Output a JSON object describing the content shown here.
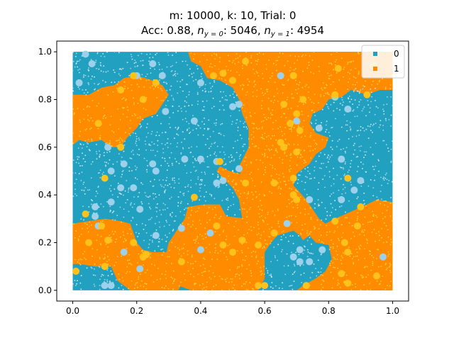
{
  "chart_data": {
    "type": "scatter",
    "title_line1": "m: 10000, k: 10, Trial: 0",
    "title_line2": {
      "prefix": "Acc: 0.88, ",
      "n0_label": "n",
      "n0_sub": "y = 0",
      "n0_value": ": 5046, ",
      "n1_label": "n",
      "n1_sub": "y = 1",
      "n1_value": ": 4954"
    },
    "xlim": [
      -0.05,
      1.05
    ],
    "ylim": [
      -0.045,
      1.045
    ],
    "x_ticks": [
      0.0,
      0.2,
      0.4,
      0.6,
      0.8,
      1.0
    ],
    "y_ticks": [
      0.0,
      0.2,
      0.4,
      0.6,
      0.8,
      1.0
    ],
    "x_tick_labels": [
      "0.0",
      "0.2",
      "0.4",
      "0.6",
      "0.8",
      "1.0"
    ],
    "y_tick_labels": [
      "0.0",
      "0.2",
      "0.4",
      "0.6",
      "0.8",
      "1.0"
    ],
    "grid": false,
    "legend_position": "top-right",
    "series": [
      {
        "name": "0",
        "color": "#22a0c0",
        "class": 0
      },
      {
        "name": "1",
        "color": "#ff8c00",
        "class": 1
      }
    ],
    "decision_regions": {
      "class1_polygons": [
        [
          [
            0.36,
            1.0
          ],
          [
            1.0,
            1.0
          ],
          [
            1.0,
            0.84
          ],
          [
            0.96,
            0.84
          ],
          [
            0.92,
            0.82
          ],
          [
            0.87,
            0.84
          ],
          [
            0.8,
            0.82
          ],
          [
            0.76,
            0.78
          ],
          [
            0.72,
            0.74
          ],
          [
            0.69,
            0.68
          ],
          [
            0.7,
            0.62
          ],
          [
            0.67,
            0.55
          ],
          [
            0.62,
            0.49
          ],
          [
            0.6,
            0.43
          ],
          [
            0.58,
            0.36
          ],
          [
            0.55,
            0.3
          ],
          [
            0.48,
            0.31
          ],
          [
            0.46,
            0.36
          ],
          [
            0.41,
            0.36
          ],
          [
            0.36,
            0.35
          ],
          [
            0.35,
            0.3
          ],
          [
            0.32,
            0.24
          ],
          [
            0.3,
            0.2
          ],
          [
            0.29,
            0.14
          ],
          [
            0.3,
            0.08
          ],
          [
            0.33,
            0.02
          ],
          [
            0.37,
            0.0
          ],
          [
            0.58,
            0.0
          ],
          [
            0.6,
            0.05
          ],
          [
            0.6,
            0.16
          ],
          [
            0.62,
            0.2
          ],
          [
            0.64,
            0.23
          ],
          [
            0.69,
            0.25
          ],
          [
            0.71,
            0.23
          ],
          [
            0.72,
            0.21
          ],
          [
            0.74,
            0.23
          ],
          [
            0.76,
            0.2
          ],
          [
            0.8,
            0.19
          ],
          [
            0.81,
            0.13
          ],
          [
            0.79,
            0.08
          ],
          [
            0.76,
            0.05
          ],
          [
            0.72,
            0.02
          ],
          [
            0.7,
            0.0
          ],
          [
            1.0,
            0.0
          ],
          [
            1.0,
            0.37
          ],
          [
            0.95,
            0.38
          ],
          [
            0.92,
            0.36
          ],
          [
            0.87,
            0.33
          ],
          [
            0.82,
            0.3
          ],
          [
            0.79,
            0.28
          ],
          [
            0.77,
            0.3
          ],
          [
            0.75,
            0.34
          ],
          [
            0.73,
            0.38
          ],
          [
            0.71,
            0.41
          ],
          [
            0.69,
            0.44
          ],
          [
            0.7,
            0.49
          ],
          [
            0.74,
            0.53
          ],
          [
            0.76,
            0.57
          ],
          [
            0.79,
            0.6
          ],
          [
            0.8,
            0.64
          ],
          [
            0.76,
            0.66
          ],
          [
            0.74,
            0.7
          ],
          [
            0.75,
            0.74
          ],
          [
            0.78,
            0.76
          ],
          [
            0.8,
            0.8
          ],
          [
            0.84,
            0.81
          ],
          [
            0.87,
            0.84
          ],
          [
            0.92,
            0.86
          ],
          [
            0.96,
            0.86
          ],
          [
            1.0,
            0.86
          ],
          [
            1.0,
            0.84
          ],
          [
            0.96,
            0.84
          ],
          [
            0.92,
            0.82
          ],
          [
            0.87,
            0.84
          ],
          [
            0.8,
            0.82
          ],
          [
            0.76,
            0.78
          ],
          [
            0.72,
            0.74
          ],
          [
            0.69,
            0.68
          ],
          [
            0.7,
            0.62
          ],
          [
            0.67,
            0.55
          ],
          [
            0.62,
            0.49
          ],
          [
            0.6,
            0.43
          ],
          [
            0.58,
            0.36
          ],
          [
            0.55,
            0.3
          ],
          [
            0.52,
            0.52
          ],
          [
            0.55,
            0.6
          ],
          [
            0.55,
            0.68
          ],
          [
            0.53,
            0.74
          ],
          [
            0.52,
            0.8
          ],
          [
            0.5,
            0.85
          ],
          [
            0.46,
            0.88
          ],
          [
            0.42,
            0.89
          ],
          [
            0.4,
            0.94
          ],
          [
            0.37,
            0.96
          ]
        ],
        [
          [
            0.0,
            0.82
          ],
          [
            0.05,
            0.82
          ],
          [
            0.09,
            0.85
          ],
          [
            0.13,
            0.86
          ],
          [
            0.16,
            0.89
          ],
          [
            0.2,
            0.9
          ],
          [
            0.25,
            0.88
          ],
          [
            0.28,
            0.86
          ],
          [
            0.3,
            0.82
          ],
          [
            0.28,
            0.78
          ],
          [
            0.26,
            0.74
          ],
          [
            0.22,
            0.72
          ],
          [
            0.2,
            0.68
          ],
          [
            0.17,
            0.64
          ],
          [
            0.15,
            0.6
          ],
          [
            0.12,
            0.6
          ],
          [
            0.09,
            0.63
          ],
          [
            0.05,
            0.62
          ],
          [
            0.02,
            0.63
          ],
          [
            0.0,
            0.61
          ]
        ],
        [
          [
            0.0,
            0.28
          ],
          [
            0.05,
            0.29
          ],
          [
            0.1,
            0.3
          ],
          [
            0.15,
            0.29
          ],
          [
            0.18,
            0.28
          ],
          [
            0.19,
            0.24
          ],
          [
            0.2,
            0.2
          ],
          [
            0.22,
            0.17
          ],
          [
            0.25,
            0.16
          ],
          [
            0.3,
            0.16
          ],
          [
            0.33,
            0.14
          ],
          [
            0.35,
            0.1
          ],
          [
            0.35,
            0.05
          ],
          [
            0.33,
            0.0
          ],
          [
            0.18,
            0.0
          ],
          [
            0.14,
            0.04
          ],
          [
            0.12,
            0.1
          ],
          [
            0.07,
            0.1
          ],
          [
            0.02,
            0.11
          ],
          [
            0.0,
            0.11
          ]
        ],
        [
          [
            0.46,
            0.52
          ],
          [
            0.49,
            0.5
          ],
          [
            0.52,
            0.49
          ],
          [
            0.55,
            0.47
          ],
          [
            0.57,
            0.42
          ],
          [
            0.58,
            0.36
          ],
          [
            0.55,
            0.3
          ],
          [
            0.53,
            0.3
          ],
          [
            0.52,
            0.38
          ],
          [
            0.5,
            0.43
          ],
          [
            0.47,
            0.47
          ],
          [
            0.45,
            0.5
          ]
        ]
      ]
    },
    "points": {
      "count_background": 10000,
      "large_class0": [
        [
          0.04,
          0.99
        ],
        [
          0.06,
          0.95
        ],
        [
          0.02,
          0.87
        ],
        [
          0.2,
          0.9
        ],
        [
          0.25,
          0.95
        ],
        [
          0.28,
          0.9
        ],
        [
          0.4,
          0.87
        ],
        [
          0.65,
          0.9
        ],
        [
          0.29,
          0.75
        ],
        [
          0.38,
          0.71
        ],
        [
          0.52,
          0.78
        ],
        [
          0.5,
          0.77
        ],
        [
          0.11,
          0.6
        ],
        [
          0.16,
          0.53
        ],
        [
          0.12,
          0.5
        ],
        [
          0.25,
          0.53
        ],
        [
          0.26,
          0.5
        ],
        [
          0.35,
          0.55
        ],
        [
          0.4,
          0.55
        ],
        [
          0.45,
          0.54
        ],
        [
          0.45,
          0.45
        ],
        [
          0.47,
          0.46
        ],
        [
          0.52,
          0.51
        ],
        [
          0.15,
          0.43
        ],
        [
          0.19,
          0.43
        ],
        [
          0.21,
          0.34
        ],
        [
          0.12,
          0.37
        ],
        [
          0.07,
          0.35
        ],
        [
          0.07,
          0.31
        ],
        [
          0.08,
          0.27
        ],
        [
          0.26,
          0.23
        ],
        [
          0.34,
          0.26
        ],
        [
          0.43,
          0.24
        ],
        [
          0.4,
          0.17
        ],
        [
          0.16,
          0.16
        ],
        [
          0.21,
          0.09
        ],
        [
          0.1,
          0.02
        ],
        [
          0.12,
          0.02
        ],
        [
          0.82,
          0.81
        ],
        [
          0.86,
          0.76
        ],
        [
          0.77,
          0.68
        ],
        [
          0.7,
          0.71
        ],
        [
          0.84,
          0.55
        ],
        [
          0.88,
          0.42
        ],
        [
          0.9,
          0.46
        ],
        [
          0.84,
          0.38
        ],
        [
          0.74,
          0.38
        ],
        [
          0.71,
          0.17
        ],
        [
          0.69,
          0.14
        ],
        [
          0.71,
          0.12
        ],
        [
          0.74,
          0.12
        ],
        [
          0.78,
          0.17
        ],
        [
          0.67,
          0.28
        ],
        [
          0.97,
          0.14
        ]
      ],
      "large_class1": [
        [
          0.54,
          0.96
        ],
        [
          0.69,
          0.9
        ],
        [
          0.83,
          0.93
        ],
        [
          0.94,
          0.94
        ],
        [
          0.92,
          0.82
        ],
        [
          0.44,
          0.9
        ],
        [
          0.47,
          0.91
        ],
        [
          0.5,
          0.88
        ],
        [
          0.15,
          0.84
        ],
        [
          0.22,
          0.8
        ],
        [
          0.19,
          0.9
        ],
        [
          0.26,
          0.87
        ],
        [
          0.08,
          0.7
        ],
        [
          0.66,
          0.78
        ],
        [
          0.7,
          0.74
        ],
        [
          0.68,
          0.7
        ],
        [
          0.71,
          0.67
        ],
        [
          0.72,
          0.8
        ],
        [
          0.65,
          0.62
        ],
        [
          0.66,
          0.6
        ],
        [
          0.7,
          0.58
        ],
        [
          0.46,
          0.54
        ],
        [
          0.54,
          0.45
        ],
        [
          0.1,
          0.47
        ],
        [
          0.15,
          0.6
        ],
        [
          0.63,
          0.45
        ],
        [
          0.69,
          0.4
        ],
        [
          0.7,
          0.38
        ],
        [
          0.69,
          0.47
        ],
        [
          0.86,
          0.47
        ],
        [
          0.82,
          0.29
        ],
        [
          0.9,
          0.35
        ],
        [
          0.89,
          0.27
        ],
        [
          0.04,
          0.32
        ],
        [
          0.09,
          0.27
        ],
        [
          0.11,
          0.21
        ],
        [
          0.05,
          0.2
        ],
        [
          0.1,
          0.1
        ],
        [
          0.19,
          0.2
        ],
        [
          0.23,
          0.15
        ],
        [
          0.38,
          0.39
        ],
        [
          0.45,
          0.27
        ],
        [
          0.47,
          0.19
        ],
        [
          0.5,
          0.16
        ],
        [
          0.53,
          0.21
        ],
        [
          0.58,
          0.19
        ],
        [
          0.63,
          0.24
        ],
        [
          0.6,
          0.02
        ],
        [
          0.58,
          0.02
        ],
        [
          0.73,
          0.02
        ],
        [
          0.85,
          0.2
        ],
        [
          0.86,
          0.16
        ],
        [
          0.84,
          0.07
        ],
        [
          0.86,
          0.03
        ],
        [
          0.95,
          0.06
        ],
        [
          0.01,
          0.08
        ],
        [
          0.22,
          0.14
        ],
        [
          0.34,
          0.12
        ],
        [
          0.82,
          0.82
        ]
      ]
    }
  },
  "legend": [
    {
      "label": "0",
      "color": "#22a0c0"
    },
    {
      "label": "1",
      "color": "#ff8c00"
    }
  ]
}
